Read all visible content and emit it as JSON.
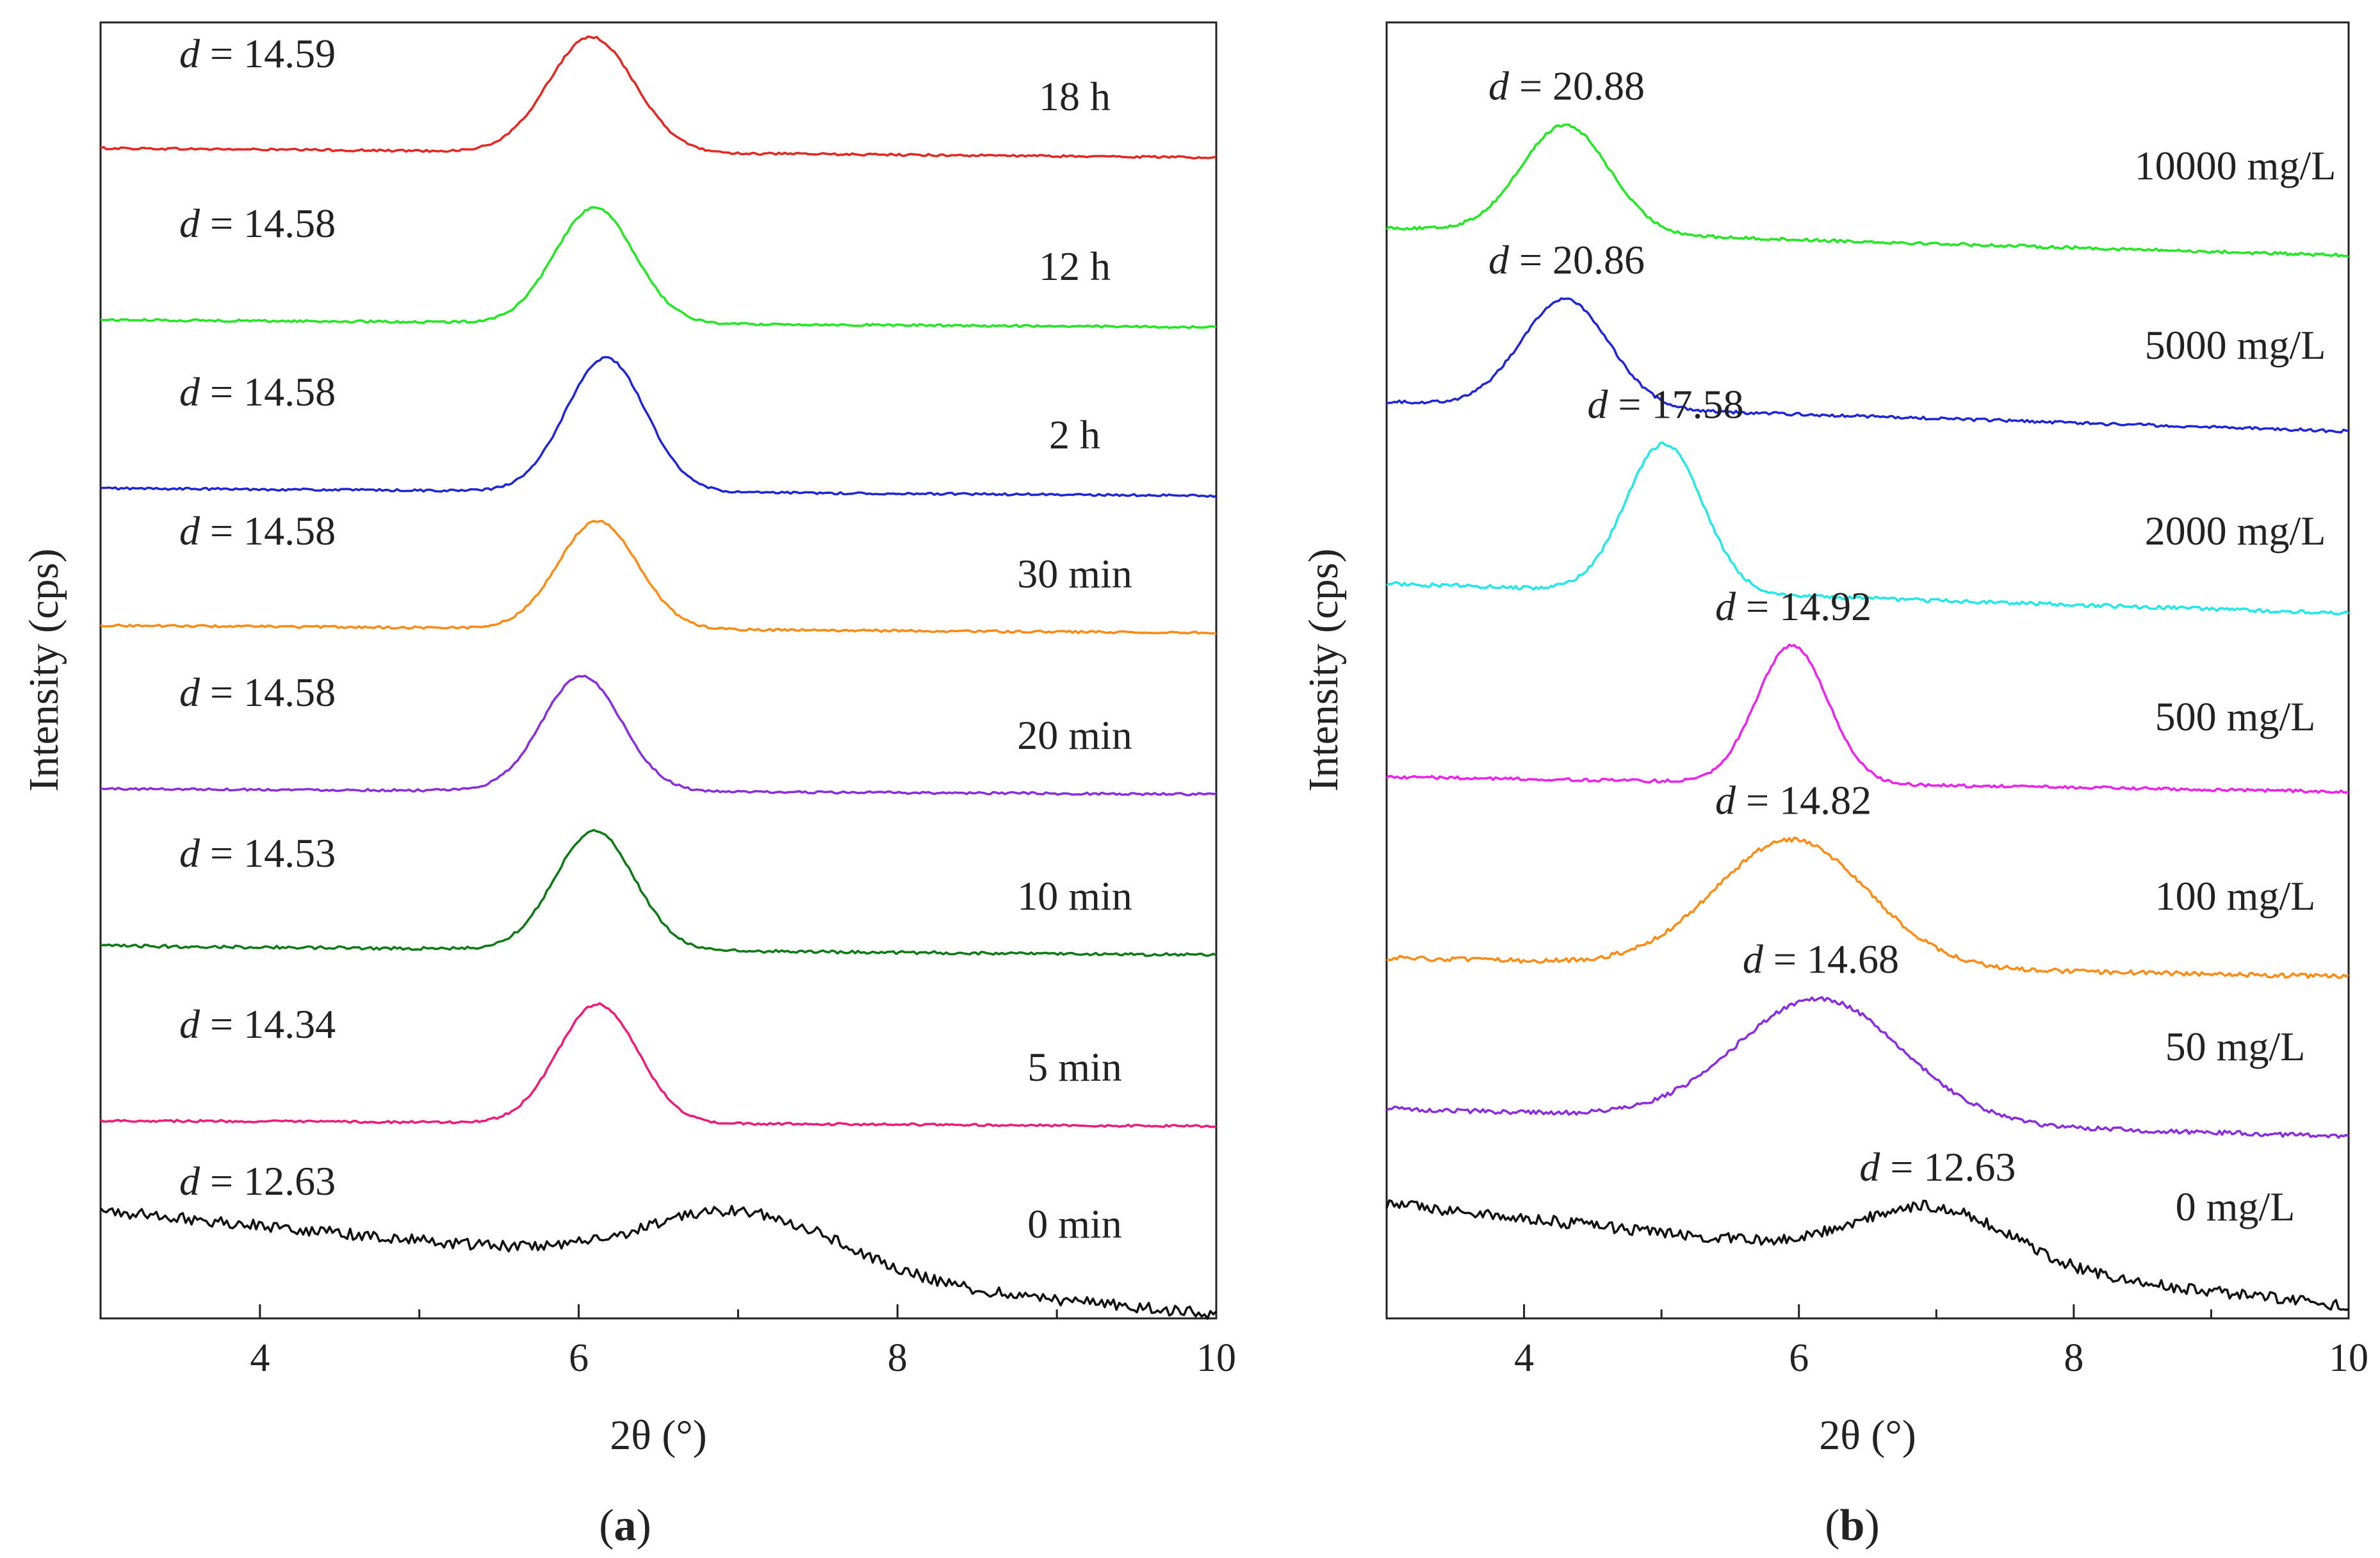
{
  "chart_data": [
    {
      "panel": "a",
      "type": "line",
      "xlabel": "2θ (°)",
      "ylabel": "Intensity (cps)",
      "xlim": [
        3,
        10
      ],
      "xticks": [
        4,
        6,
        8,
        10
      ],
      "grid": false,
      "series": [
        {
          "name": "18 h",
          "d_label": "14.59",
          "color": "#e8241f",
          "peak_x": 6.08,
          "peak_height": 0.62,
          "peak_width": 0.27,
          "baseline_left": 0.03,
          "baseline_right": -0.02,
          "noise": 0.006
        },
        {
          "name": "12 h",
          "d_label": "14.58",
          "color": "#1ee81e",
          "peak_x": 6.1,
          "peak_height": 0.62,
          "peak_width": 0.25,
          "baseline_left": 0.02,
          "baseline_right": -0.02,
          "noise": 0.006
        },
        {
          "name": "2 h",
          "d_label": "14.58",
          "color": "#1e24d8",
          "peak_x": 6.17,
          "peak_height": 0.72,
          "peak_width": 0.25,
          "baseline_left": 0.02,
          "baseline_right": -0.02,
          "noise": 0.006
        },
        {
          "name": "30 min",
          "d_label": "14.58",
          "color": "#ff8a12",
          "peak_x": 6.12,
          "peak_height": 0.58,
          "peak_width": 0.25,
          "baseline_left": 0.03,
          "baseline_right": -0.01,
          "noise": 0.006
        },
        {
          "name": "20 min",
          "d_label": "14.58",
          "color": "#8a2be2",
          "peak_x": 6.02,
          "peak_height": 0.62,
          "peak_width": 0.25,
          "baseline_left": 0.02,
          "baseline_right": -0.01,
          "noise": 0.006
        },
        {
          "name": "10 min",
          "d_label": "14.53",
          "color": "#0a7a12",
          "peak_x": 6.1,
          "peak_height": 0.64,
          "peak_width": 0.25,
          "baseline_left": 0.04,
          "baseline_right": -0.01,
          "noise": 0.008
        },
        {
          "name": "5 min",
          "d_label": "14.34",
          "color": "#f0197a",
          "peak_x": 6.12,
          "peak_height": 0.64,
          "peak_width": 0.25,
          "baseline_left": 0.02,
          "baseline_right": -0.01,
          "noise": 0.006
        },
        {
          "name": "0 min",
          "d_label": "12.63",
          "color": "#111111",
          "peak_x": 7.05,
          "peak_height": 0.32,
          "peak_width": 0.6,
          "baseline_left": 0.38,
          "baseline_right": -0.18,
          "noise": 0.03
        }
      ]
    },
    {
      "panel": "b",
      "type": "line",
      "xlabel": "2θ (°)",
      "ylabel": "Intensity (cps)",
      "xlim": [
        3,
        10
      ],
      "xticks": [
        4,
        6,
        8,
        10
      ],
      "grid": false,
      "series": [
        {
          "name": "10000 mg/L",
          "d_label": "20.88",
          "color": "#1ee81e",
          "peak_x": 4.3,
          "peak_height": 0.58,
          "peak_width": 0.32,
          "baseline_left": 0.05,
          "baseline_right": -0.1,
          "noise": 0.008
        },
        {
          "name": "5000 mg/L",
          "d_label": "20.86",
          "color": "#1e24d8",
          "peak_x": 4.3,
          "peak_height": 0.58,
          "peak_width": 0.32,
          "baseline_left": 0.08,
          "baseline_right": -0.08,
          "noise": 0.008
        },
        {
          "name": "2000 mg/L",
          "d_label": "17.58",
          "color": "#1ee8e8",
          "peak_x": 5.02,
          "peak_height": 0.8,
          "peak_width": 0.28,
          "baseline_left": 0.1,
          "baseline_right": -0.06,
          "noise": 0.01
        },
        {
          "name": "500 mg/L",
          "d_label": "14.92",
          "color": "#f01ef0",
          "peak_x": 5.95,
          "peak_height": 0.74,
          "peak_width": 0.26,
          "baseline_left": 0.06,
          "baseline_right": -0.02,
          "noise": 0.008
        },
        {
          "name": "100 mg/L",
          "d_label": "14.82",
          "color": "#ff8a12",
          "peak_x": 5.95,
          "peak_height": 0.68,
          "peak_width": 0.55,
          "baseline_left": 0.05,
          "baseline_right": -0.05,
          "noise": 0.012
        },
        {
          "name": "50 mg/L",
          "d_label": "14.68",
          "color": "#8a2be2",
          "peak_x": 6.15,
          "peak_height": 0.66,
          "peak_width": 0.6,
          "baseline_left": 0.05,
          "baseline_right": -0.1,
          "noise": 0.012
        },
        {
          "name": "0 mg/L",
          "d_label": "12.63",
          "color": "#111111",
          "peak_x": 7.0,
          "peak_height": 0.3,
          "peak_width": 0.55,
          "baseline_left": 0.4,
          "baseline_right": -0.15,
          "noise": 0.03
        }
      ]
    }
  ],
  "panel_labels": [
    "a",
    "b"
  ]
}
